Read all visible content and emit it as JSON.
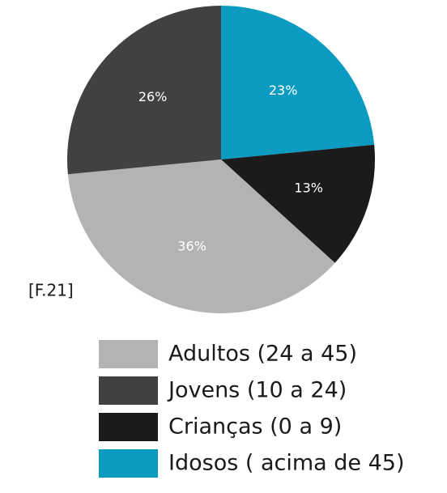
{
  "chart_data": {
    "type": "pie",
    "categories": [
      "Idosos ( acima de 45)",
      "Crianças (0 a 9)",
      "Adultos (24 a 45)",
      "Jovens (10 a 24)"
    ],
    "values": [
      23,
      13,
      36,
      26
    ],
    "value_labels": [
      "23%",
      "13%",
      "36%",
      "26%"
    ],
    "colors": [
      "#0b9bc1",
      "#1b1b1b",
      "#b3b3b3",
      "#414141"
    ],
    "annotation": "[F.21]"
  }
}
